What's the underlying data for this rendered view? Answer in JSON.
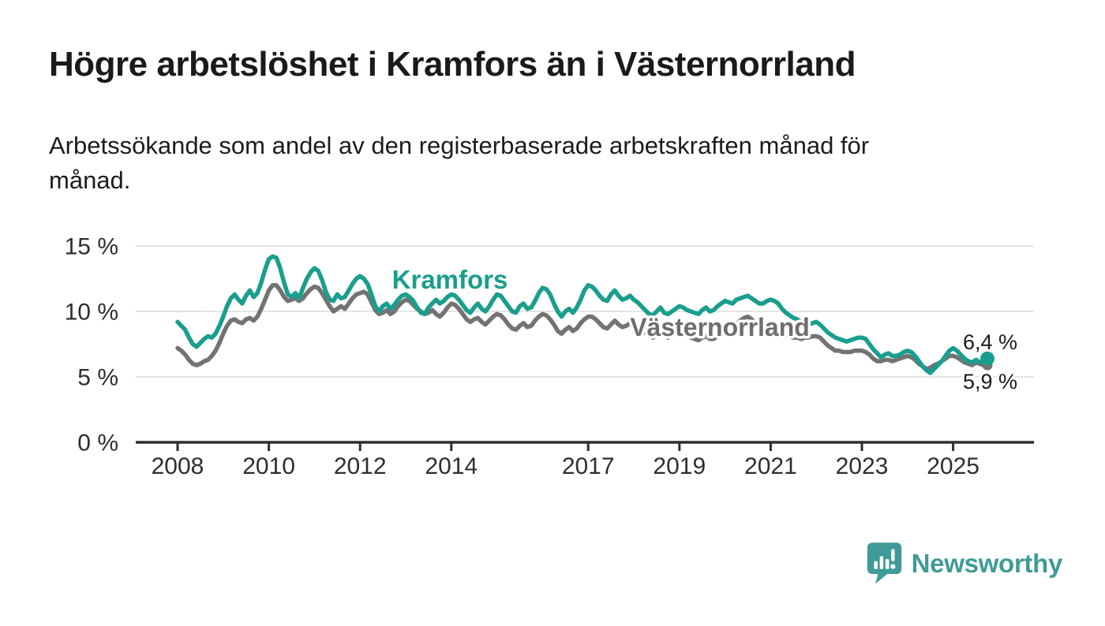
{
  "header": {
    "title": "Högre arbetslöshet i Kramfors än i Västernorrland",
    "subtitle": "Arbetssökande som andel av den registerbaserade arbetskraften månad för månad."
  },
  "branding": {
    "name": "Newsworthy",
    "color": "#3f9b95",
    "icon": "bar-chart-speech-bubble-icon"
  },
  "chart_data": {
    "type": "line",
    "title": "Högre arbetslöshet i Kramfors än i Västernorrland",
    "subtitle": "Arbetssökande som andel av den registerbaserade arbetskraften månad för månad.",
    "unit": "%",
    "frequency": "monthly",
    "x_start": "2008-01",
    "x_end": "2025-10",
    "x_tick_years": [
      2008,
      2010,
      2012,
      2014,
      2017,
      2019,
      2021,
      2023,
      2025
    ],
    "ylim": [
      0,
      15
    ],
    "y_ticks": [
      {
        "value": 0,
        "label": "0 %"
      },
      {
        "value": 5,
        "label": "5 %"
      },
      {
        "value": 10,
        "label": "10 %"
      },
      {
        "value": 15,
        "label": "15 %"
      }
    ],
    "grid": "horizontal",
    "legend": "inline-labels",
    "axis_color": "#2e2e2e",
    "grid_color": "#dcdcdc",
    "end_label_color": "#1a1a1a",
    "series": [
      {
        "name": "Kramfors",
        "color": "#1a9e8d",
        "end_label": "6,4 %",
        "last_value": 6.4,
        "values": [
          9.2,
          8.9,
          8.6,
          8.0,
          7.5,
          7.3,
          7.6,
          7.9,
          8.1,
          8.0,
          8.3,
          8.9,
          9.6,
          10.4,
          11.0,
          11.3,
          10.9,
          10.6,
          11.2,
          11.6,
          11.1,
          11.4,
          12.2,
          13.2,
          14.0,
          14.2,
          14.1,
          13.3,
          12.2,
          11.3,
          11.1,
          11.4,
          11.0,
          11.8,
          12.5,
          13.0,
          13.3,
          13.1,
          12.4,
          11.5,
          10.9,
          10.8,
          11.3,
          11.0,
          11.1,
          11.6,
          12.1,
          12.5,
          12.7,
          12.5,
          12.1,
          11.3,
          10.4,
          10.0,
          10.4,
          10.6,
          10.2,
          10.5,
          10.9,
          11.2,
          11.3,
          11.1,
          10.8,
          10.3,
          9.9,
          9.8,
          10.3,
          10.6,
          10.9,
          10.6,
          10.8,
          11.1,
          11.3,
          11.2,
          10.9,
          10.5,
          10.1,
          9.9,
          10.3,
          10.6,
          10.2,
          10.0,
          10.4,
          10.9,
          11.3,
          11.2,
          10.8,
          10.4,
          10.0,
          9.9,
          10.4,
          10.6,
          10.2,
          10.3,
          10.8,
          11.4,
          11.8,
          11.7,
          11.3,
          10.6,
          10.0,
          9.6,
          10.0,
          10.2,
          9.9,
          10.3,
          10.9,
          11.6,
          12.0,
          11.9,
          11.6,
          11.2,
          10.9,
          10.8,
          11.3,
          11.6,
          11.2,
          10.9,
          11.0,
          11.2,
          10.9,
          10.7,
          10.4,
          10.1,
          9.8,
          9.7,
          10.0,
          10.3,
          9.9,
          9.8,
          10.0,
          10.2,
          10.4,
          10.3,
          10.1,
          10.0,
          9.9,
          9.8,
          10.1,
          10.3,
          10.0,
          10.1,
          10.4,
          10.6,
          10.8,
          10.7,
          10.6,
          10.9,
          11.0,
          11.1,
          11.2,
          11.0,
          10.8,
          10.6,
          10.6,
          10.8,
          10.9,
          10.8,
          10.6,
          10.2,
          9.9,
          9.7,
          9.5,
          9.4,
          9.2,
          9.0,
          9.0,
          9.1,
          9.2,
          9.0,
          8.7,
          8.4,
          8.2,
          8.0,
          7.9,
          7.8,
          7.7,
          7.8,
          7.9,
          8.0,
          8.0,
          7.9,
          7.5,
          7.1,
          6.8,
          6.5,
          6.7,
          6.8,
          6.6,
          6.6,
          6.7,
          6.9,
          7.0,
          6.9,
          6.6,
          6.2,
          5.8,
          5.5,
          5.3,
          5.6,
          5.9,
          6.2,
          6.6,
          7.0,
          7.2,
          7.0,
          6.7,
          6.4,
          6.2,
          6.1,
          6.3,
          6.1,
          6.2,
          6.4
        ]
      },
      {
        "name": "Västernorrland",
        "color": "#737373",
        "end_label": "5,9 %",
        "last_value": 5.9,
        "values": [
          7.2,
          7.0,
          6.7,
          6.3,
          6.0,
          5.9,
          6.0,
          6.2,
          6.3,
          6.6,
          7.0,
          7.6,
          8.3,
          8.9,
          9.3,
          9.4,
          9.2,
          9.1,
          9.4,
          9.5,
          9.3,
          9.6,
          10.2,
          10.9,
          11.6,
          12.0,
          12.0,
          11.6,
          11.1,
          10.8,
          10.9,
          11.0,
          10.8,
          11.0,
          11.4,
          11.7,
          11.9,
          11.8,
          11.4,
          10.9,
          10.4,
          10.0,
          10.2,
          10.4,
          10.2,
          10.6,
          11.0,
          11.3,
          11.4,
          11.5,
          11.3,
          10.7,
          10.1,
          9.8,
          9.9,
          10.1,
          9.8,
          10.0,
          10.4,
          10.7,
          10.9,
          10.8,
          10.5,
          10.2,
          10.0,
          9.8,
          9.9,
          10.1,
          9.8,
          9.6,
          9.9,
          10.3,
          10.6,
          10.5,
          10.2,
          9.8,
          9.4,
          9.2,
          9.4,
          9.5,
          9.2,
          9.0,
          9.3,
          9.6,
          9.8,
          9.7,
          9.4,
          9.0,
          8.7,
          8.6,
          8.9,
          9.1,
          8.8,
          8.9,
          9.3,
          9.6,
          9.8,
          9.7,
          9.4,
          9.0,
          8.5,
          8.3,
          8.6,
          8.8,
          8.5,
          8.7,
          9.1,
          9.4,
          9.6,
          9.6,
          9.4,
          9.1,
          8.8,
          8.7,
          9.0,
          9.3,
          9.0,
          8.8,
          8.9,
          9.1,
          9.0,
          8.9,
          8.6,
          8.4,
          8.2,
          8.0,
          8.3,
          8.5,
          8.2,
          8.0,
          8.2,
          8.4,
          8.5,
          8.4,
          8.2,
          8.0,
          7.9,
          7.8,
          8.0,
          8.1,
          7.9,
          7.9,
          8.1,
          8.3,
          8.4,
          8.3,
          8.5,
          9.0,
          9.3,
          9.5,
          9.6,
          9.4,
          9.1,
          8.9,
          8.8,
          8.8,
          8.9,
          8.8,
          8.6,
          8.4,
          8.2,
          8.1,
          8.0,
          8.0,
          7.9,
          8.0,
          8.0,
          8.1,
          8.1,
          8.0,
          7.7,
          7.4,
          7.2,
          7.0,
          7.0,
          6.9,
          6.9,
          6.9,
          7.0,
          7.0,
          7.0,
          6.9,
          6.7,
          6.4,
          6.2,
          6.2,
          6.3,
          6.3,
          6.2,
          6.3,
          6.4,
          6.5,
          6.6,
          6.5,
          6.3,
          6.0,
          5.8,
          5.6,
          5.7,
          5.9,
          6.0,
          6.2,
          6.4,
          6.6,
          6.6,
          6.5,
          6.3,
          6.1,
          6.0,
          5.9,
          6.1,
          6.0,
          5.9,
          5.9
        ]
      }
    ]
  }
}
